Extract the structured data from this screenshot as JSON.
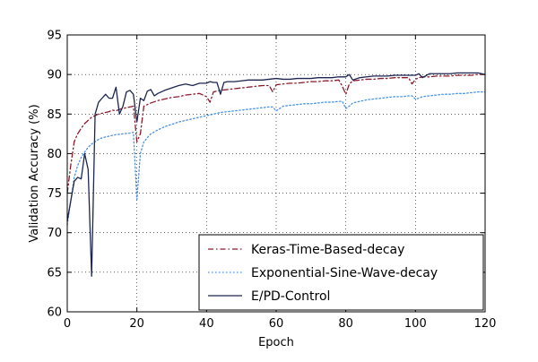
{
  "chart_data": {
    "type": "line",
    "title": "",
    "xlabel": "Epoch",
    "ylabel": "Validation Accuracy (%)",
    "xlim": [
      0,
      120
    ],
    "ylim": [
      60,
      95
    ],
    "xticks": [
      "0",
      "20",
      "40",
      "60",
      "80",
      "100",
      "120"
    ],
    "yticks": [
      "60",
      "65",
      "70",
      "75",
      "80",
      "85",
      "90",
      "95"
    ],
    "grid": true,
    "legend_position": "lower-right",
    "series": [
      {
        "name": "Keras-Time-Based-decay",
        "color": "#8b1a2b",
        "style": "dashdot",
        "x": [
          0,
          1,
          2,
          3,
          4,
          5,
          6,
          7,
          8,
          9,
          10,
          11,
          12,
          13,
          14,
          15,
          16,
          17,
          18,
          19,
          20,
          21,
          22,
          24,
          26,
          28,
          30,
          32,
          34,
          36,
          38,
          40,
          41,
          42,
          44,
          46,
          48,
          50,
          52,
          54,
          56,
          58,
          59,
          60,
          62,
          64,
          66,
          68,
          70,
          72,
          74,
          76,
          78,
          79,
          80,
          81,
          82,
          84,
          86,
          88,
          90,
          92,
          94,
          96,
          98,
          99,
          100,
          101,
          102,
          104,
          106,
          108,
          110,
          112,
          114,
          116,
          118,
          120
        ],
        "values": [
          75.0,
          78.5,
          81.5,
          82.5,
          83.2,
          83.8,
          84.2,
          84.6,
          84.8,
          85.0,
          85.1,
          85.2,
          85.3,
          85.5,
          85.4,
          85.6,
          85.7,
          85.8,
          85.9,
          86.0,
          81.5,
          82.5,
          86.0,
          86.4,
          86.7,
          86.9,
          87.1,
          87.2,
          87.4,
          87.5,
          87.6,
          87.2,
          86.5,
          87.8,
          88.0,
          88.1,
          88.2,
          88.3,
          88.4,
          88.5,
          88.6,
          88.6,
          87.8,
          88.7,
          88.8,
          88.9,
          88.9,
          89.0,
          89.1,
          89.1,
          89.2,
          89.2,
          89.3,
          88.5,
          87.5,
          88.8,
          89.2,
          89.3,
          89.4,
          89.4,
          89.5,
          89.5,
          89.6,
          89.6,
          89.6,
          88.8,
          89.4,
          89.6,
          89.7,
          89.7,
          89.8,
          89.8,
          89.8,
          89.9,
          89.9,
          89.9,
          90.0,
          90.0
        ]
      },
      {
        "name": "Exponential-Sine-Wave-decay",
        "color": "#4a90e2",
        "style": "dotted",
        "x": [
          0,
          1,
          2,
          3,
          4,
          5,
          6,
          7,
          8,
          9,
          10,
          12,
          14,
          16,
          18,
          19,
          20,
          21,
          22,
          24,
          26,
          28,
          30,
          32,
          34,
          36,
          38,
          40,
          42,
          44,
          46,
          48,
          50,
          52,
          54,
          56,
          58,
          59,
          60,
          62,
          64,
          66,
          68,
          70,
          72,
          74,
          76,
          78,
          79,
          80,
          81,
          82,
          84,
          86,
          88,
          90,
          92,
          94,
          96,
          98,
          99,
          100,
          101,
          102,
          104,
          106,
          108,
          110,
          112,
          114,
          116,
          118,
          120
        ],
        "values": [
          71.0,
          74.0,
          77.0,
          78.5,
          79.5,
          80.2,
          80.8,
          81.2,
          81.5,
          81.8,
          82.0,
          82.2,
          82.4,
          82.5,
          82.6,
          82.7,
          74.2,
          80.0,
          81.5,
          82.5,
          83.0,
          83.4,
          83.7,
          84.0,
          84.2,
          84.4,
          84.6,
          84.8,
          85.0,
          85.2,
          85.3,
          85.4,
          85.5,
          85.6,
          85.7,
          85.8,
          85.9,
          85.9,
          85.4,
          86.0,
          86.1,
          86.2,
          86.3,
          86.3,
          86.4,
          86.5,
          86.5,
          86.6,
          86.6,
          85.7,
          86.0,
          86.4,
          86.6,
          86.8,
          86.9,
          87.0,
          87.1,
          87.2,
          87.2,
          87.3,
          87.3,
          86.9,
          87.0,
          87.2,
          87.3,
          87.4,
          87.5,
          87.5,
          87.6,
          87.6,
          87.7,
          87.8,
          87.8
        ]
      },
      {
        "name": "E/PD-Control",
        "color": "#1c2550",
        "style": "solid",
        "x": [
          0,
          1,
          2,
          3,
          4,
          5,
          6,
          7,
          8,
          9,
          10,
          11,
          12,
          13,
          14,
          15,
          16,
          17,
          18,
          19,
          20,
          21,
          22,
          23,
          24,
          25,
          26,
          28,
          30,
          32,
          34,
          36,
          38,
          40,
          41,
          42,
          43,
          44,
          45,
          46,
          48,
          50,
          52,
          54,
          56,
          58,
          60,
          62,
          64,
          66,
          68,
          70,
          72,
          74,
          76,
          78,
          80,
          81,
          82,
          84,
          86,
          88,
          90,
          92,
          94,
          96,
          98,
          100,
          101,
          102,
          104,
          106,
          108,
          110,
          112,
          114,
          116,
          118,
          120
        ],
        "values": [
          71.5,
          74.0,
          76.5,
          77.0,
          76.8,
          80.0,
          78.0,
          64.5,
          85.0,
          86.5,
          87.0,
          87.5,
          87.0,
          87.0,
          88.4,
          85.0,
          86.0,
          87.8,
          88.0,
          87.5,
          84.0,
          87.0,
          86.7,
          87.9,
          88.1,
          87.3,
          87.6,
          88.0,
          88.3,
          88.6,
          88.8,
          88.6,
          88.9,
          88.9,
          89.1,
          89.0,
          89.0,
          87.5,
          89.0,
          89.1,
          89.1,
          89.2,
          89.3,
          89.3,
          89.3,
          89.4,
          89.5,
          89.4,
          89.4,
          89.5,
          89.5,
          89.5,
          89.6,
          89.6,
          89.6,
          89.7,
          89.7,
          90.0,
          89.3,
          89.6,
          89.7,
          89.8,
          89.8,
          89.8,
          89.9,
          89.9,
          89.9,
          89.9,
          90.1,
          89.6,
          90.1,
          90.1,
          90.1,
          90.1,
          90.2,
          90.2,
          90.2,
          90.2,
          90.0
        ]
      }
    ]
  }
}
